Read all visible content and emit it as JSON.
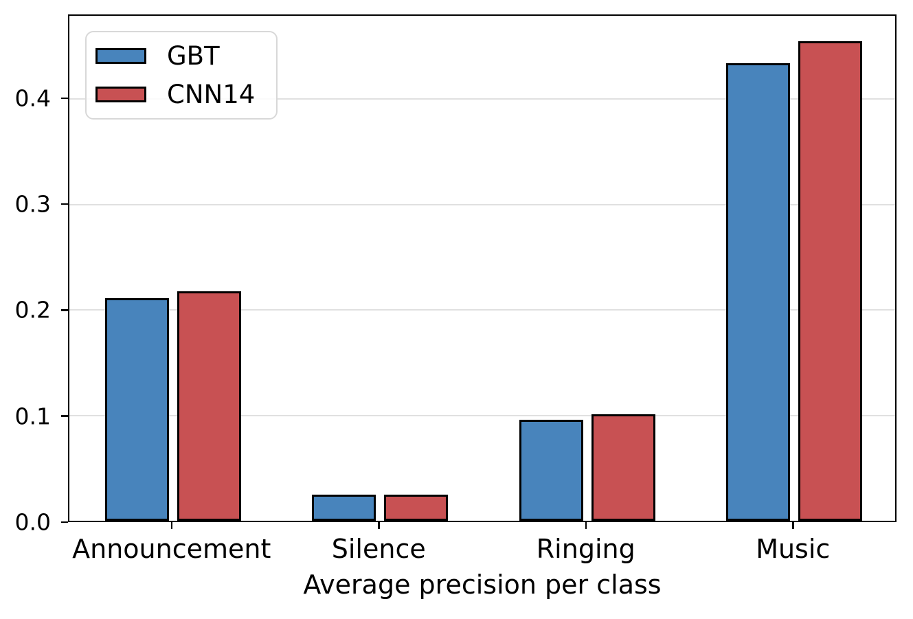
{
  "chart_data": {
    "type": "bar",
    "title": "",
    "categories": [
      "Announcement",
      "Silence",
      "Ringing",
      "Music"
    ],
    "series": [
      {
        "name": "GBT",
        "color": "#4884BC",
        "values": [
          0.211,
          0.025,
          0.096,
          0.434
        ]
      },
      {
        "name": "CNN14",
        "color": "#C85153",
        "values": [
          0.218,
          0.025,
          0.101,
          0.455
        ]
      }
    ],
    "xlabel": "Average precision per class",
    "ylabel": "",
    "ylim": [
      0,
      0.479
    ],
    "yticks": [
      {
        "value": 0.0,
        "label": "0.0"
      },
      {
        "value": 0.1,
        "label": "0.1"
      },
      {
        "value": 0.2,
        "label": "0.2"
      },
      {
        "value": 0.3,
        "label": "0.3"
      },
      {
        "value": 0.4,
        "label": "0.4"
      }
    ],
    "grid": "horizontal",
    "grid_color": "#E0E0E0",
    "axis_color": "#000000",
    "bar_edge_color": "#000000",
    "legend_position": "upper-left"
  }
}
